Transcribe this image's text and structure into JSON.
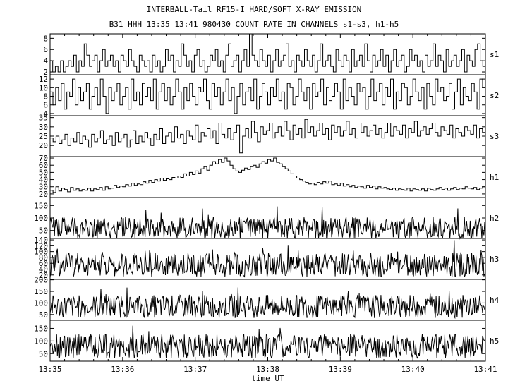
{
  "header": {
    "title": "INTERBALL-Tail RF15-I HARD/SOFT X-RAY EMISSION",
    "subtitle": "B31 HHH 13:35 13:41 980430  COUNT RATE IN CHANNELS s1-s3, h1-h5"
  },
  "chart_data": {
    "type": "line",
    "title": "INTERBALL-Tail RF15-I HARD/SOFT X-RAY EMISSION",
    "subtitle": "B31 HHH 13:35 13:41 980430  COUNT RATE IN CHANNELS s1-s3, h1-h5",
    "xlabel": "time UT",
    "x_range": [
      "13:35",
      "13:41"
    ],
    "x_ticks": [
      "13:35",
      "13:36",
      "13:37",
      "13:38",
      "13:39",
      "13:40",
      "13:41"
    ],
    "grid": false,
    "panels": [
      {
        "name": "s1",
        "ylim": [
          1.5,
          8.8
        ],
        "yticks": [
          "2",
          "4",
          "6",
          "8"
        ],
        "style": "step",
        "values": [
          4,
          2,
          3,
          2,
          4,
          2,
          3,
          4,
          3,
          5,
          2,
          4,
          3,
          7,
          5,
          3,
          4,
          5,
          2,
          4,
          6,
          3,
          4,
          5,
          3,
          4,
          2,
          5,
          4,
          3,
          6,
          4,
          3,
          2,
          5,
          4,
          3,
          4,
          2,
          5,
          3,
          4,
          2,
          3,
          6,
          4,
          5,
          2,
          4,
          3,
          7,
          5,
          3,
          4,
          2,
          5,
          6,
          3,
          4,
          2,
          3,
          5,
          4,
          6,
          3,
          4,
          2,
          5,
          7,
          3,
          4,
          5,
          2,
          4,
          6,
          3,
          9,
          5,
          4,
          3,
          6,
          4,
          3,
          5,
          2,
          4,
          6,
          3,
          4,
          5,
          7,
          3,
          4,
          2,
          5,
          4,
          3,
          6,
          4,
          3,
          5,
          2,
          4,
          7,
          3,
          4,
          5,
          3,
          2,
          6,
          4,
          3,
          5,
          4,
          2,
          6,
          3,
          4,
          5,
          3,
          7,
          4,
          2,
          5,
          3,
          4,
          6,
          3,
          5,
          2,
          4,
          6,
          3,
          4,
          5,
          2,
          3,
          6,
          4,
          5,
          3,
          4,
          2,
          5,
          3,
          4,
          7,
          3,
          5,
          4,
          2,
          6,
          3,
          4,
          5,
          3,
          4,
          6,
          2,
          5,
          4,
          3,
          6,
          7,
          4,
          3
        ]
      },
      {
        "name": "s2",
        "ylim": [
          3.5,
          13
        ],
        "yticks": [
          "4",
          "6",
          "8",
          "10",
          "12"
        ],
        "style": "step",
        "values": [
          9,
          6,
          10,
          7,
          11,
          5,
          9,
          8,
          12,
          6,
          10,
          7,
          9,
          11,
          5,
          8,
          10,
          6,
          12,
          8,
          4,
          10,
          7,
          9,
          11,
          6,
          8,
          10,
          5,
          12,
          7,
          9,
          6,
          11,
          8,
          10,
          7,
          12,
          5,
          9,
          11,
          7,
          10,
          6,
          8,
          12,
          9,
          5,
          10,
          7,
          11,
          8,
          6,
          10,
          9,
          12,
          7,
          5,
          11,
          8,
          10,
          6,
          9,
          12,
          7,
          10,
          4,
          8,
          11,
          6,
          9,
          10,
          7,
          12,
          5,
          8,
          11,
          9,
          6,
          10,
          8,
          12,
          7,
          9,
          5,
          11,
          10,
          6,
          8,
          12,
          9,
          7,
          10,
          5,
          11,
          8,
          9,
          12,
          6,
          10,
          7,
          8,
          11,
          9,
          5,
          12,
          7,
          10,
          8,
          6,
          11,
          9,
          10,
          5,
          8,
          12,
          7,
          9,
          11,
          6,
          10,
          8,
          12,
          5,
          9,
          7,
          11,
          10,
          6,
          8,
          12,
          9,
          7,
          10,
          5,
          11,
          8,
          6,
          12,
          9,
          10,
          7,
          8,
          11,
          5,
          9,
          12,
          6,
          10,
          8,
          7,
          11,
          9,
          5,
          12,
          10
        ]
      },
      {
        "name": "s3",
        "ylim": [
          14,
          36
        ],
        "yticks": [
          "20",
          "25",
          "30",
          "35"
        ],
        "style": "step",
        "values": [
          24,
          22,
          25,
          21,
          23,
          26,
          20,
          24,
          22,
          27,
          21,
          25,
          23,
          19,
          26,
          22,
          24,
          28,
          21,
          23,
          25,
          20,
          27,
          22,
          24,
          26,
          19,
          23,
          28,
          21,
          25,
          22,
          27,
          24,
          20,
          26,
          23,
          29,
          21,
          25,
          27,
          22,
          30,
          24,
          26,
          21,
          28,
          25,
          23,
          31,
          22,
          27,
          25,
          29,
          24,
          28,
          21,
          32,
          26,
          24,
          29,
          23,
          27,
          31,
          16,
          25,
          29,
          24,
          33,
          27,
          22,
          30,
          26,
          28,
          32,
          24,
          27,
          30,
          25,
          33,
          28,
          23,
          31,
          26,
          29,
          24,
          34,
          27,
          30,
          25,
          28,
          32,
          26,
          29,
          23,
          31,
          27,
          30,
          25,
          28,
          33,
          26,
          29,
          24,
          32,
          27,
          30,
          25,
          28,
          31,
          26,
          29,
          24,
          27,
          32,
          25,
          30,
          28,
          26,
          31,
          24,
          29,
          27,
          33,
          25,
          28,
          30,
          26,
          29,
          32,
          27,
          25,
          30,
          28,
          26,
          31,
          24,
          29,
          27,
          25,
          30,
          28,
          26,
          31,
          24,
          29,
          27
        ]
      },
      {
        "name": "h1",
        "ylim": [
          15,
          72
        ],
        "yticks": [
          "20",
          "30",
          "40",
          "50",
          "60",
          "70"
        ],
        "style": "step",
        "values": [
          25,
          22,
          30,
          24,
          28,
          26,
          23,
          29,
          25,
          27,
          24,
          26,
          25,
          28,
          24,
          27,
          26,
          29,
          25,
          30,
          27,
          28,
          32,
          29,
          31,
          30,
          33,
          31,
          35,
          32,
          34,
          33,
          37,
          35,
          39,
          36,
          40,
          38,
          42,
          39,
          41,
          40,
          43,
          42,
          45,
          43,
          48,
          45,
          50,
          47,
          52,
          49,
          55,
          58,
          53,
          60,
          65,
          62,
          68,
          64,
          70,
          66,
          60,
          55,
          52,
          50,
          53,
          56,
          54,
          58,
          60,
          57,
          62,
          65,
          63,
          68,
          66,
          70,
          64,
          62,
          58,
          55,
          52,
          48,
          45,
          42,
          40,
          38,
          36,
          34,
          35,
          33,
          36,
          34,
          37,
          35,
          38,
          33,
          34,
          32,
          35,
          31,
          33,
          30,
          32,
          29,
          31,
          30,
          28,
          32,
          29,
          31,
          27,
          30,
          28,
          29,
          27,
          26,
          28,
          25,
          27,
          26,
          25,
          28,
          24,
          27,
          26,
          25,
          27,
          24,
          28,
          26,
          25,
          27,
          29,
          26,
          28,
          25,
          27,
          29,
          26,
          28,
          27,
          30,
          28,
          27,
          29,
          26,
          28,
          30
        ]
      },
      {
        "name": "h2",
        "ylim": [
          18,
          182
        ],
        "yticks": [
          "50",
          "100",
          "150"
        ],
        "style": "noise",
        "baseline": 60,
        "spread": 45,
        "n": 600
      },
      {
        "name": "h3",
        "ylim": [
          5,
          145
        ],
        "yticks": [
          "20",
          "40",
          "60",
          "80",
          "100",
          "120",
          "140"
        ],
        "style": "noise",
        "baseline": 55,
        "spread": 42,
        "n": 600
      },
      {
        "name": "h4",
        "ylim": [
          25,
          202
        ],
        "yticks": [
          "50",
          "100",
          "150",
          "200"
        ],
        "style": "noise",
        "baseline": 85,
        "spread": 50,
        "n": 600
      },
      {
        "name": "h5",
        "ylim": [
          20,
          182
        ],
        "yticks": [
          "50",
          "100",
          "150"
        ],
        "style": "noise",
        "baseline": 80,
        "spread": 48,
        "n": 600
      }
    ]
  }
}
